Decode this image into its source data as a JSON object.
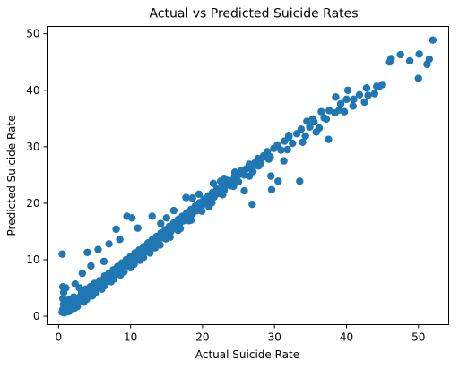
{
  "chart_data": {
    "type": "scatter",
    "title": "Actual vs Predicted Suicide Rates",
    "xlabel": "Actual Suicide Rate",
    "ylabel": "Predicted Suicide Rate",
    "xlim": [
      -1.6,
      54.2
    ],
    "ylim": [
      -1.5,
      51.3
    ],
    "x_ticks": [
      0,
      10,
      20,
      30,
      40,
      50
    ],
    "x_tick_labels": [
      "0",
      "10",
      "20",
      "30",
      "40",
      "50"
    ],
    "y_ticks": [
      0,
      10,
      20,
      30,
      40,
      50
    ],
    "y_tick_labels": [
      "0",
      "10",
      "20",
      "30",
      "40",
      "50"
    ],
    "grid": false,
    "legend": "none",
    "marker_color": "#1f77b4",
    "series": [
      {
        "points": [
          [
            0.5,
            0.7
          ],
          [
            0.6,
            1.2
          ],
          [
            0.7,
            2.1
          ],
          [
            0.8,
            1.5
          ],
          [
            0.9,
            0.9
          ],
          [
            1.0,
            1.8
          ],
          [
            1.1,
            2.5
          ],
          [
            1.2,
            1.1
          ],
          [
            1.4,
            2.0
          ],
          [
            1.5,
            3.0
          ],
          [
            1.6,
            2.2
          ],
          [
            1.8,
            1.6
          ],
          [
            2.0,
            2.7
          ],
          [
            2.1,
            3.4
          ],
          [
            2.3,
            2.1
          ],
          [
            2.5,
            3.1
          ],
          [
            2.7,
            2.6
          ],
          [
            3.0,
            3.5
          ],
          [
            3.2,
            4.2
          ],
          [
            3.4,
            3.1
          ],
          [
            3.6,
            4.0
          ],
          [
            3.8,
            4.8
          ],
          [
            4.0,
            3.8
          ],
          [
            4.2,
            4.5
          ],
          [
            4.4,
            5.2
          ],
          [
            4.6,
            4.3
          ],
          [
            4.8,
            5.1
          ],
          [
            5.0,
            5.8
          ],
          [
            5.2,
            4.9
          ],
          [
            5.5,
            5.6
          ],
          [
            5.7,
            6.3
          ],
          [
            6.0,
            5.5
          ],
          [
            6.2,
            6.4
          ],
          [
            6.4,
            7.1
          ],
          [
            6.6,
            6.0
          ],
          [
            6.8,
            6.9
          ],
          [
            7.0,
            7.6
          ],
          [
            7.2,
            6.8
          ],
          [
            7.4,
            7.5
          ],
          [
            7.6,
            8.2
          ],
          [
            7.8,
            7.3
          ],
          [
            8.0,
            8.0
          ],
          [
            8.2,
            8.8
          ],
          [
            8.4,
            7.9
          ],
          [
            8.6,
            8.7
          ],
          [
            8.8,
            9.4
          ],
          [
            9.0,
            8.5
          ],
          [
            9.2,
            9.2
          ],
          [
            9.4,
            10.0
          ],
          [
            9.6,
            9.1
          ],
          [
            9.8,
            9.9
          ],
          [
            10.0,
            10.6
          ],
          [
            10.2,
            9.7
          ],
          [
            10.4,
            10.5
          ],
          [
            10.6,
            11.2
          ],
          [
            10.8,
            10.3
          ],
          [
            11.0,
            11.0
          ],
          [
            11.2,
            11.7
          ],
          [
            11.4,
            10.8
          ],
          [
            11.6,
            11.6
          ],
          [
            11.8,
            12.3
          ],
          [
            12.0,
            11.4
          ],
          [
            12.2,
            12.2
          ],
          [
            12.4,
            12.9
          ],
          [
            12.6,
            12.0
          ],
          [
            12.8,
            12.8
          ],
          [
            13.0,
            13.5
          ],
          [
            13.2,
            12.6
          ],
          [
            13.4,
            13.4
          ],
          [
            13.6,
            14.1
          ],
          [
            13.8,
            13.2
          ],
          [
            14.0,
            14.0
          ],
          [
            14.2,
            14.7
          ],
          [
            14.4,
            13.9
          ],
          [
            14.6,
            14.6
          ],
          [
            14.8,
            15.3
          ],
          [
            15.0,
            14.5
          ],
          [
            15.2,
            15.2
          ],
          [
            15.4,
            15.9
          ],
          [
            15.6,
            15.0
          ],
          [
            15.8,
            15.8
          ],
          [
            16.0,
            16.5
          ],
          [
            16.2,
            15.6
          ],
          [
            16.4,
            16.4
          ],
          [
            16.6,
            17.1
          ],
          [
            16.8,
            16.3
          ],
          [
            17.0,
            17.0
          ],
          [
            17.2,
            17.7
          ],
          [
            17.4,
            16.9
          ],
          [
            17.6,
            17.6
          ],
          [
            17.8,
            18.3
          ],
          [
            18.0,
            17.5
          ],
          [
            18.2,
            18.2
          ],
          [
            18.4,
            18.9
          ],
          [
            18.6,
            18.1
          ],
          [
            18.8,
            18.8
          ],
          [
            19.0,
            19.5
          ],
          [
            19.2,
            18.7
          ],
          [
            19.4,
            19.4
          ],
          [
            19.6,
            20.1
          ],
          [
            19.8,
            19.3
          ],
          [
            20.0,
            20.0
          ],
          [
            20.2,
            20.7
          ],
          [
            20.4,
            19.9
          ],
          [
            20.6,
            20.6
          ],
          [
            20.8,
            21.3
          ],
          [
            21.0,
            20.5
          ],
          [
            21.2,
            21.2
          ],
          [
            21.4,
            21.9
          ],
          [
            21.6,
            21.1
          ],
          [
            21.8,
            21.8
          ],
          [
            22.0,
            22.5
          ],
          [
            22.2,
            21.7
          ],
          [
            22.5,
            22.4
          ],
          [
            22.8,
            23.1
          ],
          [
            23.0,
            22.3
          ],
          [
            23.3,
            23.2
          ],
          [
            23.6,
            24.0
          ],
          [
            23.9,
            23.1
          ],
          [
            24.2,
            24.1
          ],
          [
            24.5,
            24.9
          ],
          [
            24.8,
            24.0
          ],
          [
            25.1,
            25.1
          ],
          [
            25.4,
            25.8
          ],
          [
            25.8,
            25.0
          ],
          [
            26.1,
            26.1
          ],
          [
            26.5,
            26.9
          ],
          [
            26.9,
            26.0
          ],
          [
            27.3,
            27.2
          ],
          [
            27.7,
            27.9
          ],
          [
            28.1,
            27.1
          ],
          [
            28.5,
            28.4
          ],
          [
            29.0,
            29.1
          ],
          [
            29.4,
            28.2
          ],
          [
            29.9,
            29.7
          ],
          [
            30.4,
            30.3
          ],
          [
            30.9,
            29.4
          ],
          [
            31.4,
            31.0
          ],
          [
            32.0,
            31.7
          ],
          [
            32.5,
            30.6
          ],
          [
            33.1,
            32.3
          ],
          [
            33.7,
            33.1
          ],
          [
            34.3,
            31.9
          ],
          [
            34.9,
            33.5
          ],
          [
            35.5,
            34.4
          ],
          [
            36.2,
            33.3
          ],
          [
            36.9,
            35.1
          ],
          [
            37.6,
            36.4
          ],
          [
            38.4,
            36.0
          ],
          [
            39.2,
            37.6
          ],
          [
            40.0,
            38.4
          ],
          [
            40.9,
            37.2
          ],
          [
            41.8,
            39.2
          ],
          [
            42.8,
            40.4
          ],
          [
            43.9,
            39.4
          ],
          [
            45.0,
            41.0
          ],
          [
            46.2,
            45.6
          ],
          [
            47.5,
            46.3
          ],
          [
            48.8,
            45.2
          ],
          [
            50.1,
            46.4
          ],
          [
            50.0,
            42.1
          ],
          [
            51.5,
            45.5
          ],
          [
            52.0,
            48.9
          ],
          [
            51.2,
            44.6
          ],
          [
            46.0,
            45.0
          ],
          [
            44.2,
            40.7
          ],
          [
            0.5,
            11.0
          ],
          [
            0.6,
            3.1
          ],
          [
            0.6,
            5.2
          ],
          [
            0.7,
            4.2
          ],
          [
            1.0,
            5.0
          ],
          [
            2.3,
            5.7
          ],
          [
            2.9,
            5.0
          ],
          [
            3.3,
            7.6
          ],
          [
            4.0,
            11.3
          ],
          [
            4.5,
            8.9
          ],
          [
            5.5,
            11.8
          ],
          [
            6.3,
            9.7
          ],
          [
            7.0,
            12.8
          ],
          [
            8.0,
            15.4
          ],
          [
            8.5,
            13.6
          ],
          [
            9.5,
            17.7
          ],
          [
            10.2,
            17.4
          ],
          [
            11.0,
            15.6
          ],
          [
            12.5,
            13.0
          ],
          [
            13.0,
            17.7
          ],
          [
            14.2,
            16.4
          ],
          [
            15.0,
            17.4
          ],
          [
            16.0,
            18.7
          ],
          [
            17.7,
            21.0
          ],
          [
            18.6,
            20.9
          ],
          [
            19.5,
            21.6
          ],
          [
            21.5,
            23.5
          ],
          [
            22.5,
            23.9
          ],
          [
            23.0,
            24.4
          ],
          [
            24.5,
            25.5
          ],
          [
            25.8,
            22.2
          ],
          [
            26.5,
            24.8
          ],
          [
            26.9,
            19.8
          ],
          [
            28.5,
            28.2
          ],
          [
            29.5,
            24.8
          ],
          [
            29.6,
            22.4
          ],
          [
            30.5,
            23.9
          ],
          [
            31.3,
            27.5
          ],
          [
            32.0,
            32.0
          ],
          [
            33.5,
            23.9
          ],
          [
            34.5,
            34.5
          ],
          [
            35.3,
            34.9
          ],
          [
            36.5,
            36.2
          ],
          [
            37.2,
            34.9
          ],
          [
            37.5,
            31.3
          ],
          [
            39.0,
            36.5
          ],
          [
            41.0,
            38.4
          ],
          [
            42.5,
            37.9
          ],
          [
            43.0,
            39.1
          ],
          [
            44.5,
            40.6
          ],
          [
            38.5,
            38.8
          ],
          [
            40.2,
            40.0
          ],
          [
            39.7,
            36.2
          ],
          [
            35.8,
            32.6
          ],
          [
            33.9,
            30.8
          ],
          [
            31.8,
            29.5
          ],
          [
            27.8,
            26.6
          ],
          [
            25.0,
            23.8
          ],
          [
            20.9,
            19.4
          ],
          [
            18.1,
            16.9
          ],
          [
            16.6,
            15.2
          ],
          [
            14.9,
            13.7
          ],
          [
            13.4,
            12.1
          ],
          [
            11.8,
            10.4
          ],
          [
            10.5,
            9.2
          ],
          [
            9.1,
            7.9
          ],
          [
            7.7,
            6.6
          ],
          [
            6.4,
            5.4
          ],
          [
            5.1,
            4.1
          ],
          [
            3.9,
            3.0
          ],
          [
            2.6,
            1.7
          ],
          [
            1.5,
            0.9
          ],
          [
            0.8,
            0.6
          ],
          [
            1.3,
            0.8
          ],
          [
            2.2,
            1.4
          ],
          [
            3.5,
            2.5
          ],
          [
            4.7,
            3.6
          ],
          [
            6.0,
            4.8
          ],
          [
            7.3,
            6.1
          ],
          [
            8.6,
            7.3
          ],
          [
            10.0,
            8.6
          ],
          [
            11.3,
            9.9
          ],
          [
            12.7,
            11.2
          ],
          [
            14.1,
            12.6
          ],
          [
            15.5,
            14.0
          ],
          [
            16.9,
            15.5
          ],
          [
            18.4,
            17.0
          ],
          [
            19.9,
            18.6
          ],
          [
            21.3,
            20.1
          ],
          [
            22.8,
            21.5
          ],
          [
            24.3,
            23.0
          ],
          [
            27.0,
            25.6
          ],
          [
            29.2,
            27.8
          ]
        ]
      }
    ]
  }
}
